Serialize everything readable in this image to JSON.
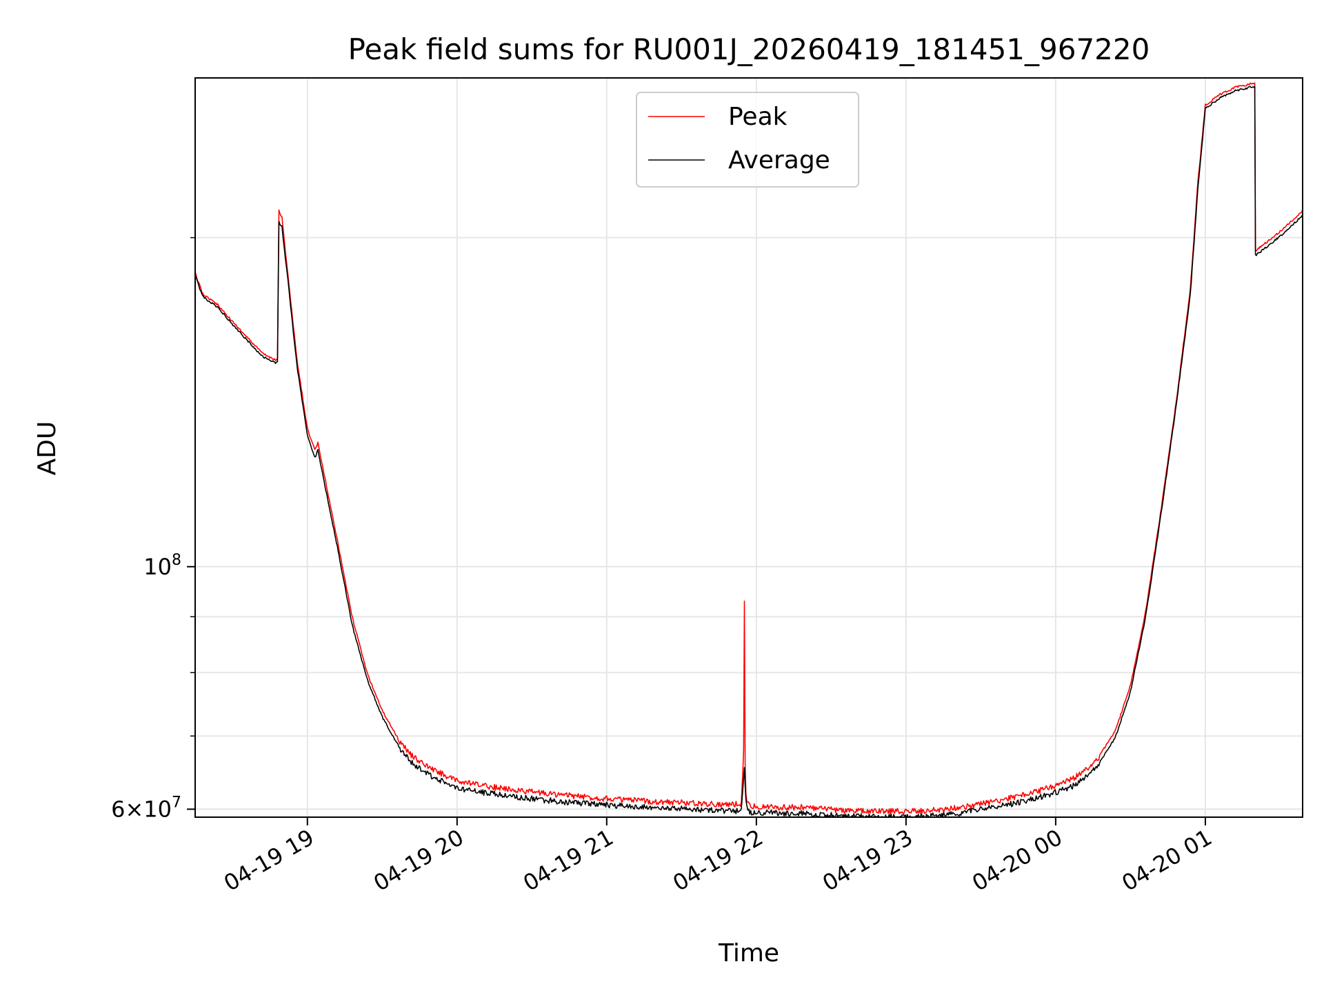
{
  "chart_data": {
    "type": "line",
    "title": "Peak field sums for RU001J_20260419_181451_967220",
    "xlabel": "Time",
    "ylabel": "ADU",
    "yscale": "log",
    "ylim": [
      59000000,
      280000000
    ],
    "xlim": [
      18.25,
      25.65
    ],
    "x_unit": "hours since 2026-04-19 00:00",
    "x_ticks": [
      {
        "value": 19,
        "label": "04-19 19"
      },
      {
        "value": 20,
        "label": "04-19 20"
      },
      {
        "value": 21,
        "label": "04-19 21"
      },
      {
        "value": 22,
        "label": "04-19 22"
      },
      {
        "value": 23,
        "label": "04-19 23"
      },
      {
        "value": 24,
        "label": "04-20 00"
      },
      {
        "value": 25,
        "label": "04-20 01"
      }
    ],
    "y_major_ticks": [
      {
        "value": 100000000,
        "base": "10",
        "exp": "8",
        "coef": ""
      },
      {
        "value": 60000000,
        "base": "10",
        "exp": "7",
        "coef": "6"
      }
    ],
    "y_minor_ticks": [
      60000000,
      70000000,
      80000000,
      90000000,
      200000000
    ],
    "grid": true,
    "legend": {
      "position": "upper-center",
      "entries": [
        "Peak",
        "Average"
      ]
    },
    "colors": {
      "Peak": "#ff0000",
      "Average": "#000000",
      "grid": "#e6e6e6"
    },
    "series": [
      {
        "name": "Peak",
        "color": "#ff0000",
        "x": [
          18.25,
          18.3,
          18.4,
          18.55,
          18.7,
          18.78,
          18.8,
          18.81,
          18.83,
          18.87,
          18.93,
          19.0,
          19.05,
          19.07,
          19.1,
          19.2,
          19.3,
          19.4,
          19.5,
          19.6,
          19.7,
          19.8,
          19.9,
          20.0,
          20.25,
          20.5,
          20.75,
          21.0,
          21.25,
          21.5,
          21.7,
          21.9,
          21.915,
          21.92,
          21.925,
          21.93,
          21.95,
          22.1,
          22.3,
          22.5,
          22.7,
          22.9,
          23.1,
          23.3,
          23.5,
          23.7,
          23.9,
          24.1,
          24.2,
          24.3,
          24.4,
          24.5,
          24.6,
          24.7,
          24.8,
          24.9,
          24.95,
          25.0,
          25.05,
          25.1,
          25.2,
          25.3,
          25.33,
          25.335,
          25.4,
          25.5,
          25.65
        ],
        "y": [
          186000000,
          178000000,
          174000000,
          165000000,
          157000000,
          155000000,
          155000000,
          212000000,
          209000000,
          185000000,
          155000000,
          134000000,
          128000000,
          130000000,
          124000000,
          106000000,
          90000000,
          80000000,
          74000000,
          70000000,
          67500000,
          66000000,
          65000000,
          64000000,
          63200000,
          62600000,
          62100000,
          61700000,
          61400000,
          61200000,
          61000000,
          61000000,
          68000000,
          93000000,
          66000000,
          62000000,
          60800000,
          60600000,
          60600000,
          60300000,
          60100000,
          60100000,
          60100000,
          60400000,
          61000000,
          61800000,
          62800000,
          64200000,
          65500000,
          67500000,
          71000000,
          78000000,
          91000000,
          112000000,
          140000000,
          180000000,
          225000000,
          265000000,
          268000000,
          271000000,
          275000000,
          277000000,
          277000000,
          195000000,
          198000000,
          203000000,
          212000000
        ]
      },
      {
        "name": "Average",
        "color": "#000000",
        "x": [
          18.25,
          18.3,
          18.4,
          18.55,
          18.7,
          18.78,
          18.8,
          18.81,
          18.83,
          18.87,
          18.93,
          19.0,
          19.05,
          19.07,
          19.1,
          19.2,
          19.3,
          19.4,
          19.5,
          19.6,
          19.7,
          19.8,
          19.9,
          20.0,
          20.25,
          20.5,
          20.75,
          21.0,
          21.25,
          21.5,
          21.7,
          21.9,
          21.92,
          21.93,
          21.95,
          22.1,
          22.3,
          22.5,
          22.7,
          22.9,
          23.1,
          23.3,
          23.5,
          23.7,
          23.9,
          24.1,
          24.2,
          24.3,
          24.4,
          24.5,
          24.6,
          24.7,
          24.8,
          24.9,
          24.95,
          25.0,
          25.05,
          25.1,
          25.2,
          25.3,
          25.33,
          25.335,
          25.4,
          25.5,
          25.65
        ],
        "y": [
          185000000,
          177000000,
          173000000,
          164000000,
          156000000,
          154000000,
          154000000,
          207000000,
          205000000,
          183000000,
          153000000,
          132000000,
          126000000,
          128000000,
          122000000,
          104500000,
          88500000,
          79000000,
          73000000,
          69000000,
          66500000,
          65000000,
          64000000,
          63000000,
          62300000,
          61700000,
          61200000,
          60900000,
          60600000,
          60400000,
          60200000,
          60100000,
          65500000,
          61200000,
          60000000,
          59900000,
          59800000,
          59600000,
          59400000,
          59400000,
          59400000,
          59700000,
          60300000,
          61000000,
          61900000,
          63200000,
          64500000,
          66500000,
          70000000,
          77000000,
          90000000,
          111000000,
          139000000,
          178000000,
          222000000,
          263000000,
          266000000,
          269000000,
          273000000,
          275000000,
          275000000,
          193000000,
          196000000,
          201000000,
          210000000
        ]
      }
    ]
  }
}
